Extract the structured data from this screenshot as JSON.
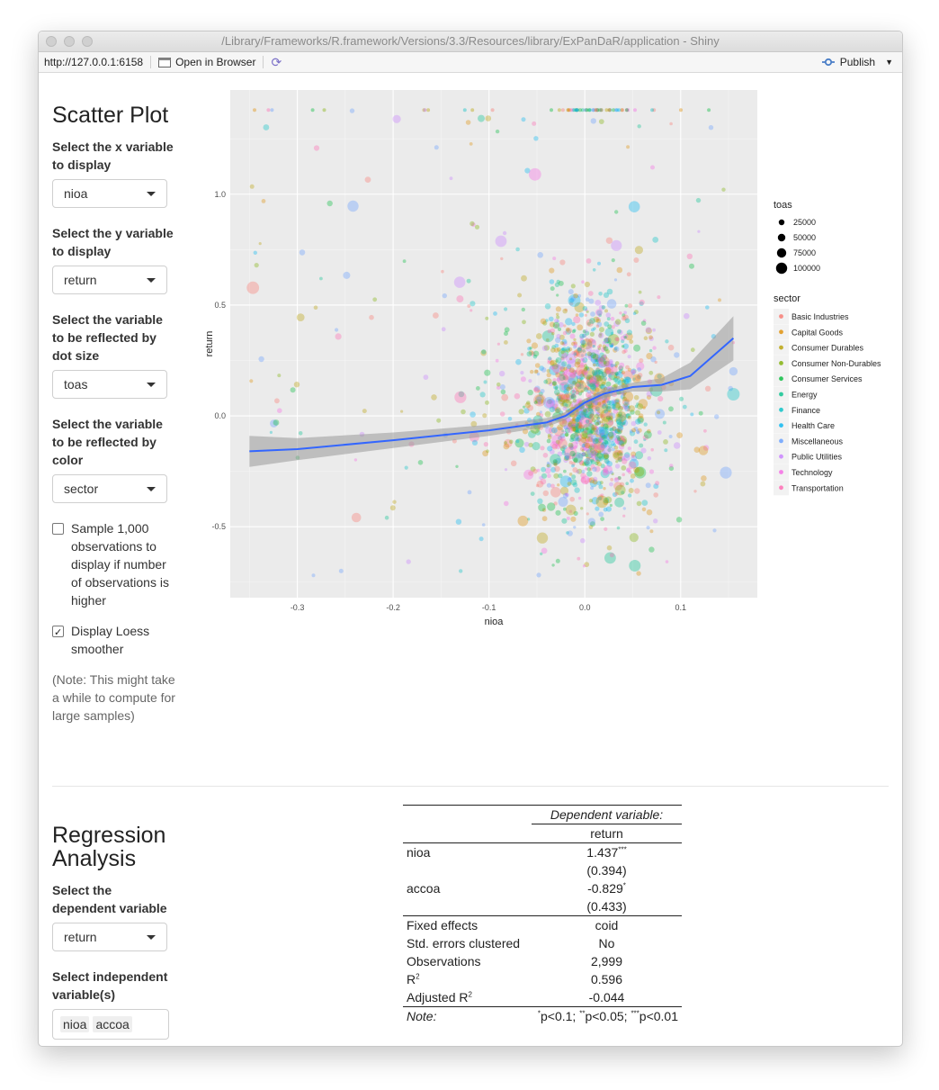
{
  "window": {
    "title": "/Library/Frameworks/R.framework/Versions/3.3/Resources/library/ExPanDaR/application - Shiny"
  },
  "toolbar": {
    "url": "http://127.0.0.1:6158",
    "open_in_browser": "Open in Browser",
    "publish": "Publish"
  },
  "scatter_panel": {
    "title": "Scatter Plot",
    "x_label": "Select the x variable to display",
    "x_value": "nioa",
    "y_label": "Select the y variable to display",
    "y_value": "return",
    "size_label": "Select the variable to be reflected by dot size",
    "size_value": "toas",
    "color_label": "Select the variable to be reflected by color",
    "color_value": "sector",
    "sample_label": "Sample 1,000 observations to display if number of observations is higher",
    "sample_checked": false,
    "loess_label": "Display Loess smoother",
    "loess_checked": true,
    "note": "(Note: This might take a while to compute for large samples)"
  },
  "regression_panel": {
    "title": "Regression Analysis",
    "dep_label": "Select the dependent variable",
    "dep_value": "return",
    "indep_label": "Select independent variable(s)",
    "indep_values": [
      "nioa",
      "accoa"
    ]
  },
  "regression_table": {
    "header_dep": "Dependent variable:",
    "header_var": "return",
    "rows": [
      {
        "name": "nioa",
        "coef": "1.437",
        "stars": "***",
        "se": "(0.394)"
      },
      {
        "name": "accoa",
        "coef": "-0.829",
        "stars": "*",
        "se": "(0.433)"
      }
    ],
    "stats": [
      {
        "name": "Fixed effects",
        "value": "coid"
      },
      {
        "name": "Std. errors clustered",
        "value": "No"
      },
      {
        "name": "Observations",
        "value": "2,999"
      },
      {
        "name": "R",
        "sup": "2",
        "value": "0.596"
      },
      {
        "name": "Adjusted R",
        "sup": "2",
        "value": "-0.044"
      }
    ],
    "note_label": "Note:",
    "note_stars": [
      "*",
      "**",
      "***"
    ],
    "note_text": [
      "p<0.1; ",
      "p<0.05; ",
      "p<0.01"
    ]
  },
  "chart_data": {
    "type": "scatter",
    "title": "",
    "xlabel": "nioa",
    "ylabel": "return",
    "xlim": [
      -0.37,
      0.18
    ],
    "ylim": [
      -0.82,
      1.47
    ],
    "x_ticks": [
      "-0.3",
      "-0.2",
      "-0.1",
      "0.0",
      "0.1"
    ],
    "x_tick_values": [
      -0.3,
      -0.2,
      -0.1,
      0.0,
      0.1
    ],
    "y_ticks": [
      "-0.5",
      "0.0",
      "0.5",
      "1.0"
    ],
    "y_tick_values": [
      -0.5,
      0.0,
      0.5,
      1.0
    ],
    "grid": true,
    "legend_position": "right",
    "size_legend": {
      "title": "toas",
      "entries": [
        "25000",
        "50000",
        "75000",
        "100000"
      ]
    },
    "color_legend": {
      "title": "sector",
      "entries": [
        {
          "name": "Basic Industries",
          "color": "#F8766D"
        },
        {
          "name": "Capital Goods",
          "color": "#DE8C00"
        },
        {
          "name": "Consumer Durables",
          "color": "#B79F00"
        },
        {
          "name": "Consumer Non-Durables",
          "color": "#7CAE00"
        },
        {
          "name": "Consumer Services",
          "color": "#00BA38"
        },
        {
          "name": "Energy",
          "color": "#00C08B"
        },
        {
          "name": "Finance",
          "color": "#00BFC4"
        },
        {
          "name": "Health Care",
          "color": "#00B4F0"
        },
        {
          "name": "Miscellaneous",
          "color": "#619CFF"
        },
        {
          "name": "Public Utilities",
          "color": "#C77CFF"
        },
        {
          "name": "Technology",
          "color": "#F564E3"
        },
        {
          "name": "Transportation",
          "color": "#FF64B0"
        }
      ]
    },
    "loess": {
      "color": "#3366FF",
      "x": [
        -0.35,
        -0.3,
        -0.2,
        -0.1,
        -0.04,
        -0.02,
        0.0,
        0.02,
        0.05,
        0.08,
        0.11,
        0.155
      ],
      "y": [
        -0.16,
        -0.15,
        -0.11,
        -0.065,
        -0.03,
        0.0,
        0.06,
        0.1,
        0.13,
        0.14,
        0.18,
        0.35
      ],
      "band": [
        0.07,
        0.05,
        0.035,
        0.025,
        0.02,
        0.018,
        0.016,
        0.018,
        0.02,
        0.03,
        0.06,
        0.1
      ]
    }
  }
}
